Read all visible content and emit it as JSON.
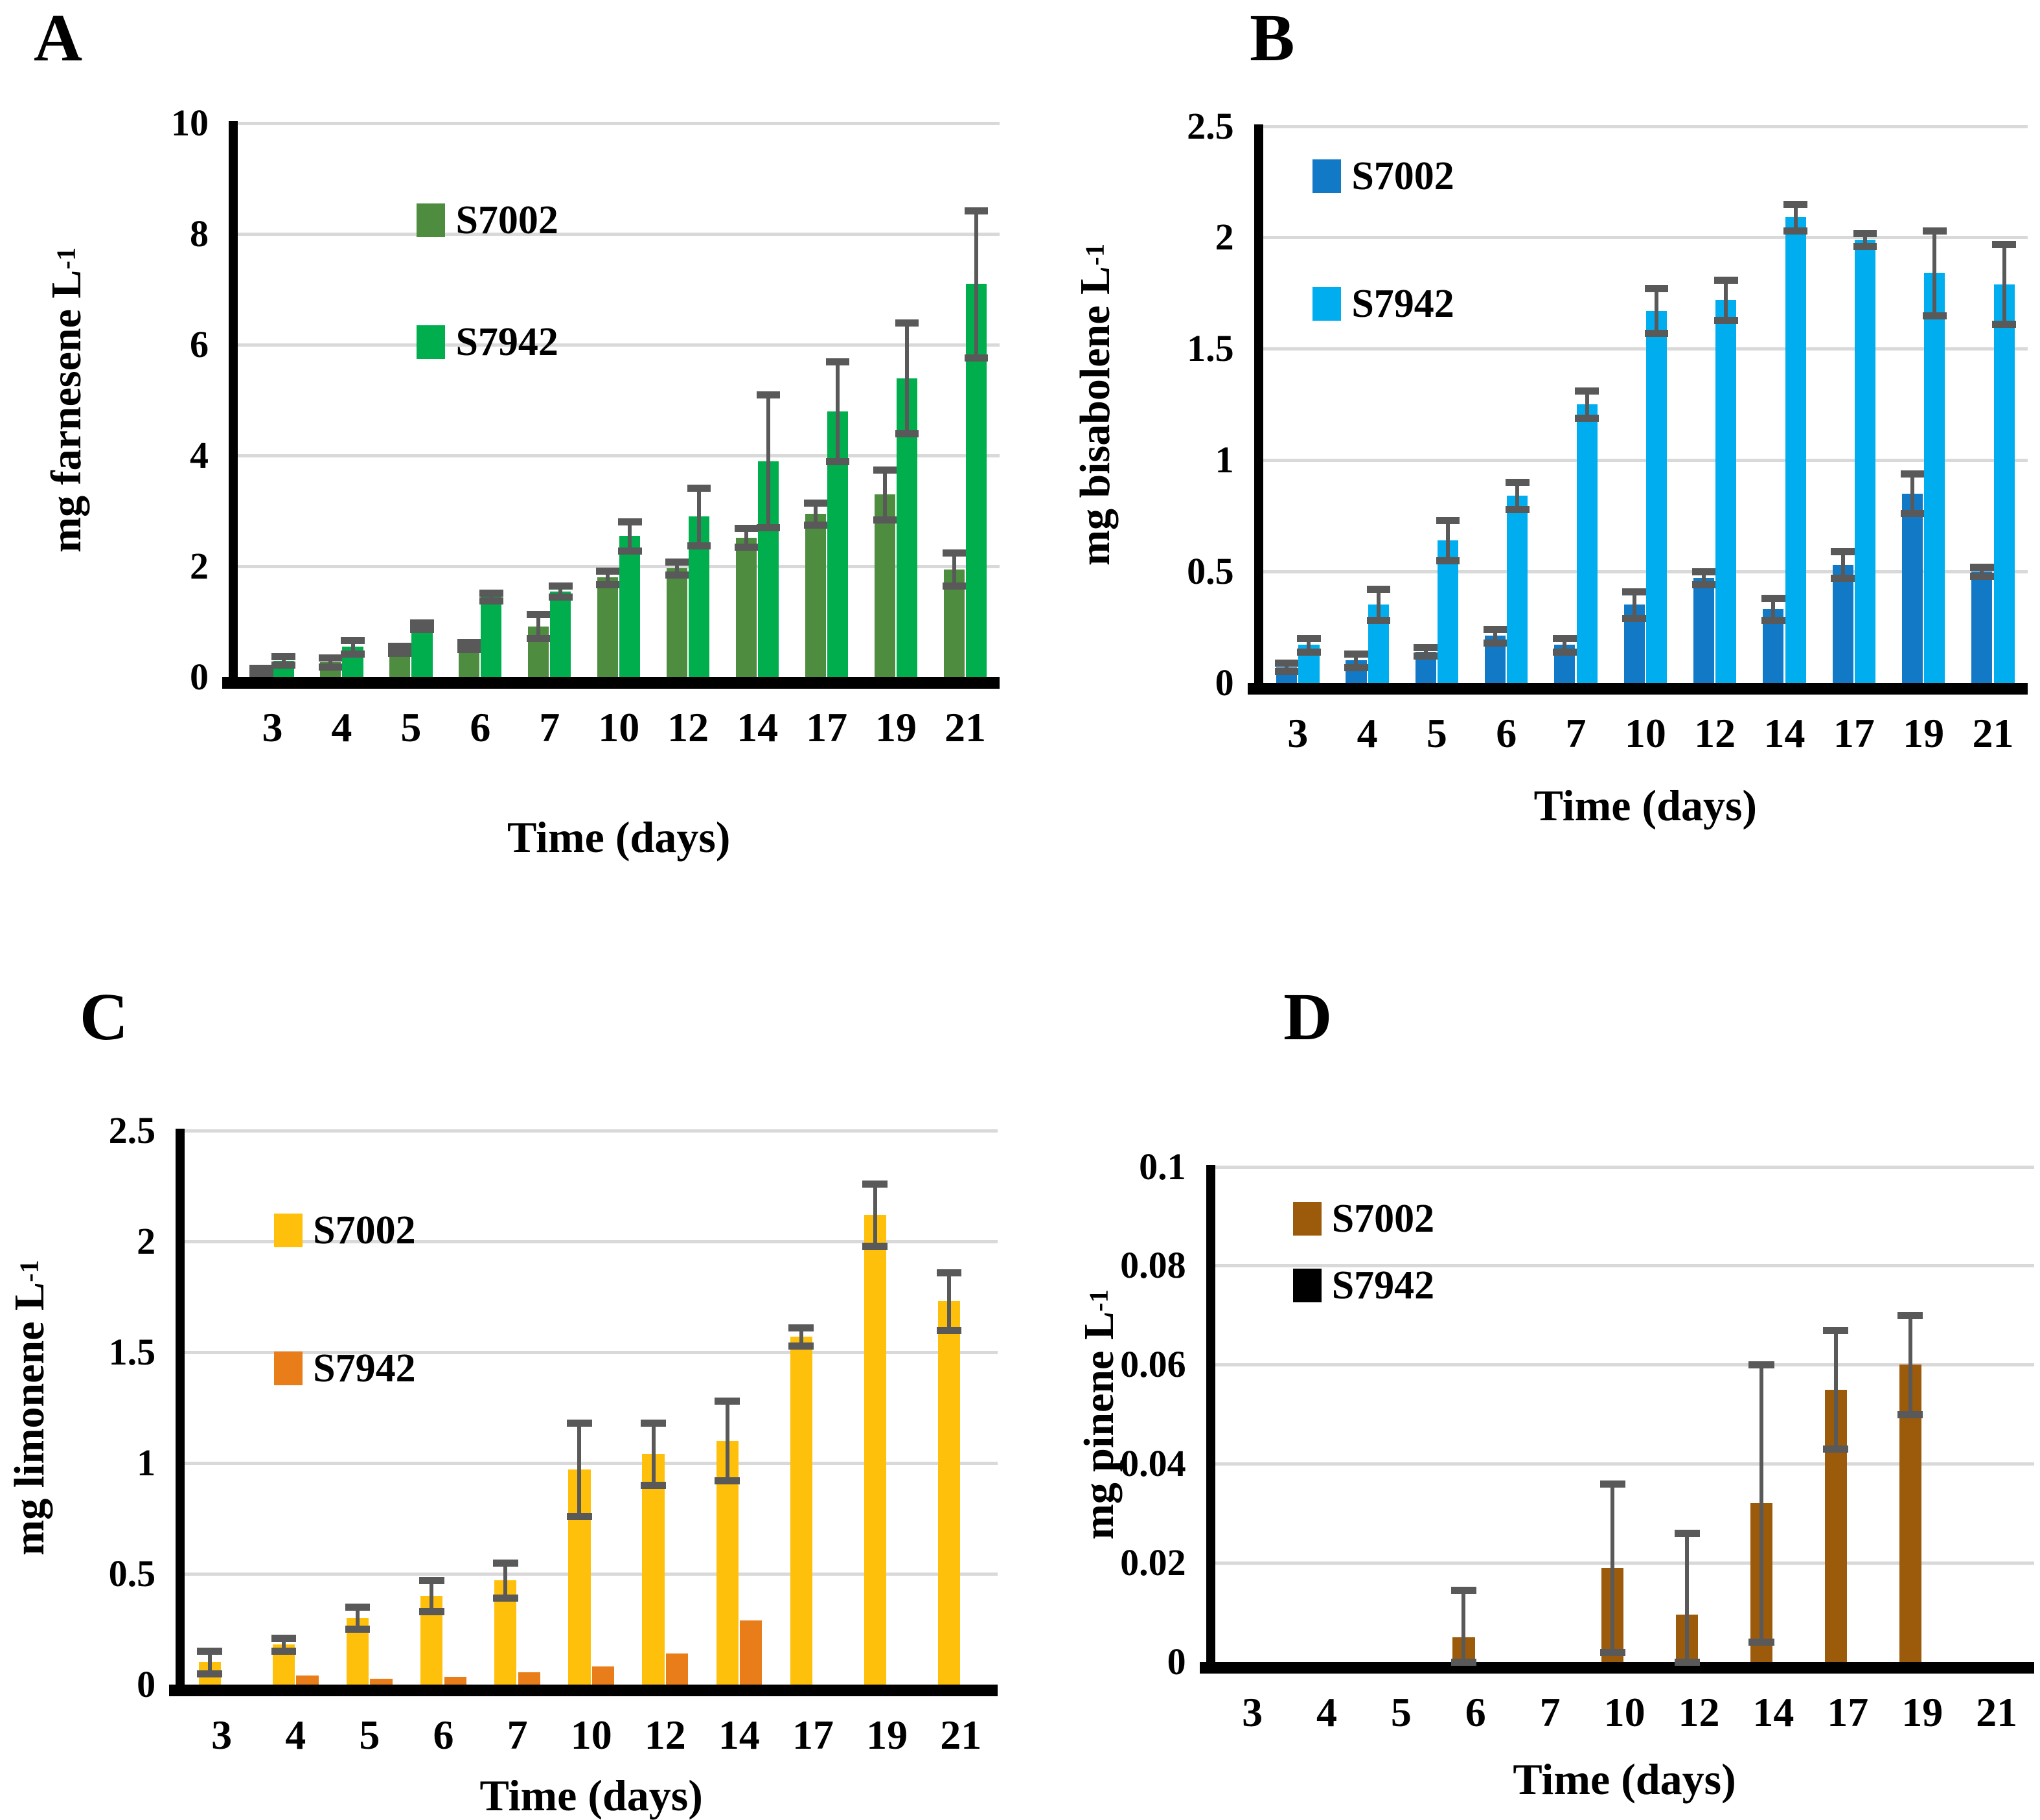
{
  "figure": {
    "background": "#FFFFFF",
    "description_visible_text_only": true
  },
  "colors": {
    "gridline": "#D9D9D9",
    "error_bar": "#595959",
    "axis": "#000000"
  },
  "chart_data": [
    {
      "panel": "A",
      "type": "bar",
      "ylabel_base": "mg farnesene L",
      "ylabel_sup": "-1",
      "xlabel": "Time (days)",
      "ymax": 10,
      "yticks": [
        "10",
        "8",
        "6",
        "4",
        "2",
        "0"
      ],
      "categories": [
        "3",
        "4",
        "5",
        "6",
        "7",
        "10",
        "12",
        "14",
        "17",
        "19",
        "21"
      ],
      "grid": true,
      "legend_position": "inside-top-left",
      "series": [
        {
          "name": "S7002",
          "color": "#4E8C3F",
          "values": [
            0.12,
            0.27,
            0.5,
            0.57,
            0.92,
            1.8,
            1.97,
            2.52,
            2.95,
            3.3,
            1.95
          ],
          "errors": [
            0.05,
            0.08,
            0.06,
            0.06,
            0.22,
            0.12,
            0.12,
            0.17,
            0.2,
            0.45,
            0.3
          ]
        },
        {
          "name": "S7942",
          "color": "#00AE4D",
          "values": [
            0.3,
            0.55,
            0.93,
            1.45,
            1.55,
            2.55,
            2.9,
            3.9,
            4.8,
            5.4,
            7.1
          ],
          "errors": [
            0.08,
            0.12,
            0.06,
            0.07,
            0.1,
            0.26,
            0.52,
            1.2,
            0.9,
            1.0,
            1.33
          ]
        }
      ]
    },
    {
      "panel": "B",
      "type": "bar",
      "ylabel_base": "mg bisabolene L",
      "ylabel_sup": "-1",
      "xlabel": "Time (days)",
      "ymax": 2.5,
      "yticks": [
        "2.5",
        "2",
        "1.5",
        "1",
        "0.5",
        "0"
      ],
      "categories": [
        "3",
        "4",
        "5",
        "6",
        "7",
        "10",
        "12",
        "14",
        "17",
        "19",
        "21"
      ],
      "grid": true,
      "legend_position": "inside-top-left",
      "series": [
        {
          "name": "S7002",
          "color": "#1179C6",
          "values": [
            0.07,
            0.1,
            0.14,
            0.21,
            0.17,
            0.35,
            0.47,
            0.33,
            0.53,
            0.85,
            0.5
          ],
          "errors": [
            0.02,
            0.03,
            0.02,
            0.03,
            0.03,
            0.06,
            0.03,
            0.05,
            0.06,
            0.09,
            0.02
          ]
        },
        {
          "name": "S7942",
          "color": "#00AEEF",
          "values": [
            0.17,
            0.35,
            0.64,
            0.84,
            1.25,
            1.67,
            1.72,
            2.09,
            1.99,
            1.84,
            1.79
          ],
          "errors": [
            0.03,
            0.07,
            0.09,
            0.06,
            0.06,
            0.1,
            0.09,
            0.06,
            0.03,
            0.19,
            0.18
          ]
        }
      ]
    },
    {
      "panel": "C",
      "type": "bar",
      "ylabel_base": "mg limonene L",
      "ylabel_sup": "-1",
      "xlabel": "Time (days)",
      "ymax": 2.5,
      "yticks": [
        "2.5",
        "2",
        "1.5",
        "1",
        "0.5",
        "0"
      ],
      "categories": [
        "3",
        "4",
        "5",
        "6",
        "7",
        "10",
        "12",
        "14",
        "17",
        "19",
        "21"
      ],
      "grid": true,
      "legend_position": "inside-top-left",
      "series": [
        {
          "name": "S7002",
          "color": "#FFC00B",
          "values": [
            0.1,
            0.18,
            0.3,
            0.4,
            0.47,
            0.97,
            1.04,
            1.1,
            1.57,
            2.12,
            1.73
          ],
          "errors": [
            0.05,
            0.03,
            0.05,
            0.07,
            0.08,
            0.21,
            0.14,
            0.18,
            0.04,
            0.14,
            0.13
          ]
        },
        {
          "name": "S7942",
          "color": "#E87D1A",
          "values": [
            0,
            0.04,
            0.025,
            0.035,
            0.055,
            0.08,
            0.14,
            0.29,
            0,
            0,
            0
          ],
          "errors": [
            0,
            0,
            0,
            0,
            0,
            0,
            0,
            0,
            0,
            0,
            0
          ]
        }
      ]
    },
    {
      "panel": "D",
      "type": "bar",
      "ylabel_base": "mg pinene L",
      "ylabel_sup": "-1",
      "xlabel": "Time (days)",
      "ymax": 0.1,
      "yticks": [
        "0.1",
        "0.08",
        "0.06",
        "0.04",
        "0.02",
        "0"
      ],
      "categories": [
        "3",
        "4",
        "5",
        "6",
        "7",
        "10",
        "12",
        "14",
        "17",
        "19",
        "21"
      ],
      "grid": true,
      "legend_position": "inside-top-left",
      "series": [
        {
          "name": "S7002",
          "color": "#9C5A0B",
          "values": [
            0,
            0,
            0,
            0.005,
            0,
            0.019,
            0.0095,
            0.032,
            0.055,
            0.06,
            0
          ],
          "errors": [
            0,
            0,
            0,
            0.0095,
            0,
            0.017,
            0.0165,
            0.028,
            0.012,
            0.01,
            0
          ]
        },
        {
          "name": "S7942",
          "color": "#000000",
          "values": [
            0,
            0,
            0,
            0,
            0,
            0,
            0,
            0,
            0,
            0,
            0
          ],
          "errors": [
            0,
            0,
            0,
            0,
            0,
            0,
            0,
            0,
            0,
            0,
            0
          ]
        }
      ]
    }
  ]
}
